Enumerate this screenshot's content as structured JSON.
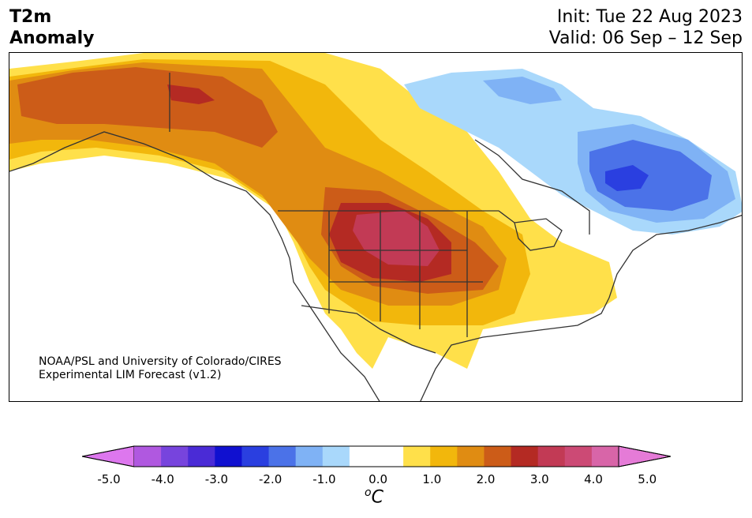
{
  "header": {
    "title_line1": "T2m",
    "title_line2": "Anomaly",
    "init": "Init: Tue 22 Aug 2023",
    "valid": "Valid: 06 Sep – 12 Sep"
  },
  "credit": {
    "line1": "NOAA/PSL and University of Colorado/CIRES",
    "line2": "Experimental LIM Forecast (v1.2)"
  },
  "colorbar": {
    "ticks": [
      "-5.0",
      "-4.0",
      "-3.0",
      "-2.0",
      "-1.0",
      "0.0",
      "1.0",
      "2.0",
      "3.0",
      "4.0",
      "5.0"
    ],
    "unit_symbol": "o",
    "unit_letter": "C",
    "colors": [
      "#dd77ee",
      "#b058e0",
      "#7744dd",
      "#4a2bd6",
      "#1010d0",
      "#2a3fe0",
      "#4b72e8",
      "#7fb2f5",
      "#a9d8fb",
      "#ffffff",
      "#ffffff",
      "#ffe04a",
      "#f2b70c",
      "#e08c12",
      "#cc5c18",
      "#b42a23",
      "#c23a55",
      "#cc4a75",
      "#d865a8",
      "#e57bd7"
    ]
  },
  "map": {
    "palette": {
      "ocean": "#ffffff",
      "neutral": "#ffffff",
      "yellow": "#ffe04a",
      "gold": "#f2b70c",
      "orange": "#e08c12",
      "dark_orange": "#cc5c18",
      "red": "#b42a23",
      "crimson": "#c23a55",
      "light_blue": "#a9d8fb",
      "mid_blue": "#7fb2f5",
      "blue": "#4b72e8",
      "deep_blue": "#2a3fe0",
      "coast": "#333333"
    }
  }
}
